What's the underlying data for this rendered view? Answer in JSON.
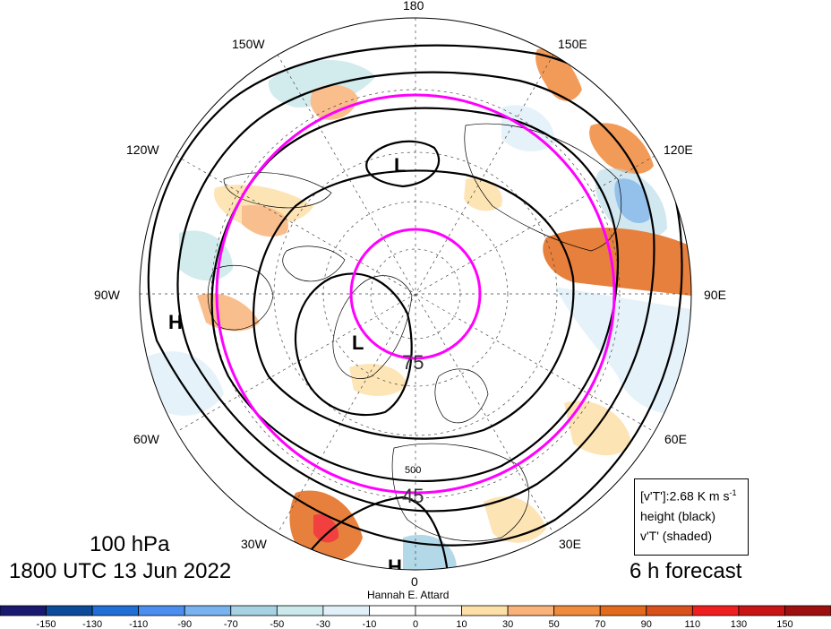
{
  "map": {
    "title_level": "100 hPa",
    "title_time": "1800 UTC 13 Jun 2022",
    "forecast": "6 h forecast",
    "author": "Hannah E. Attard",
    "longitude_labels": [
      "180",
      "150E",
      "120E",
      "90E",
      "60E",
      "30E",
      "0",
      "30W",
      "60W",
      "90W",
      "120W",
      "150W"
    ],
    "latitude_labels": [
      "75",
      "45"
    ],
    "contour_label": "500",
    "pressure_centers": [
      "L",
      "L",
      "H",
      "H"
    ],
    "ring_color": "#ff00ff",
    "legend": {
      "line1_prefix": "[v'T']:2.68 K m s",
      "line1_exp": "-1",
      "line2": "height (black)",
      "line3": "v'T' (shaded)"
    }
  },
  "colorbar": {
    "ticks": [
      "-150",
      "-130",
      "-110",
      "-90",
      "-70",
      "-50",
      "-30",
      "-10",
      "0",
      "10",
      "30",
      "50",
      "70",
      "90",
      "110",
      "130",
      "150"
    ],
    "colors": [
      "#191970",
      "#0e4a9a",
      "#1f6fd6",
      "#4b8ef0",
      "#79b3ef",
      "#a6d2e3",
      "#cbe8ea",
      "#e2f0f9",
      "#ffffff",
      "#ffffff",
      "#fde0a8",
      "#f9b37a",
      "#f08a3c",
      "#e36a1c",
      "#d8501a",
      "#f01f1f",
      "#c81414",
      "#9e1010"
    ]
  }
}
